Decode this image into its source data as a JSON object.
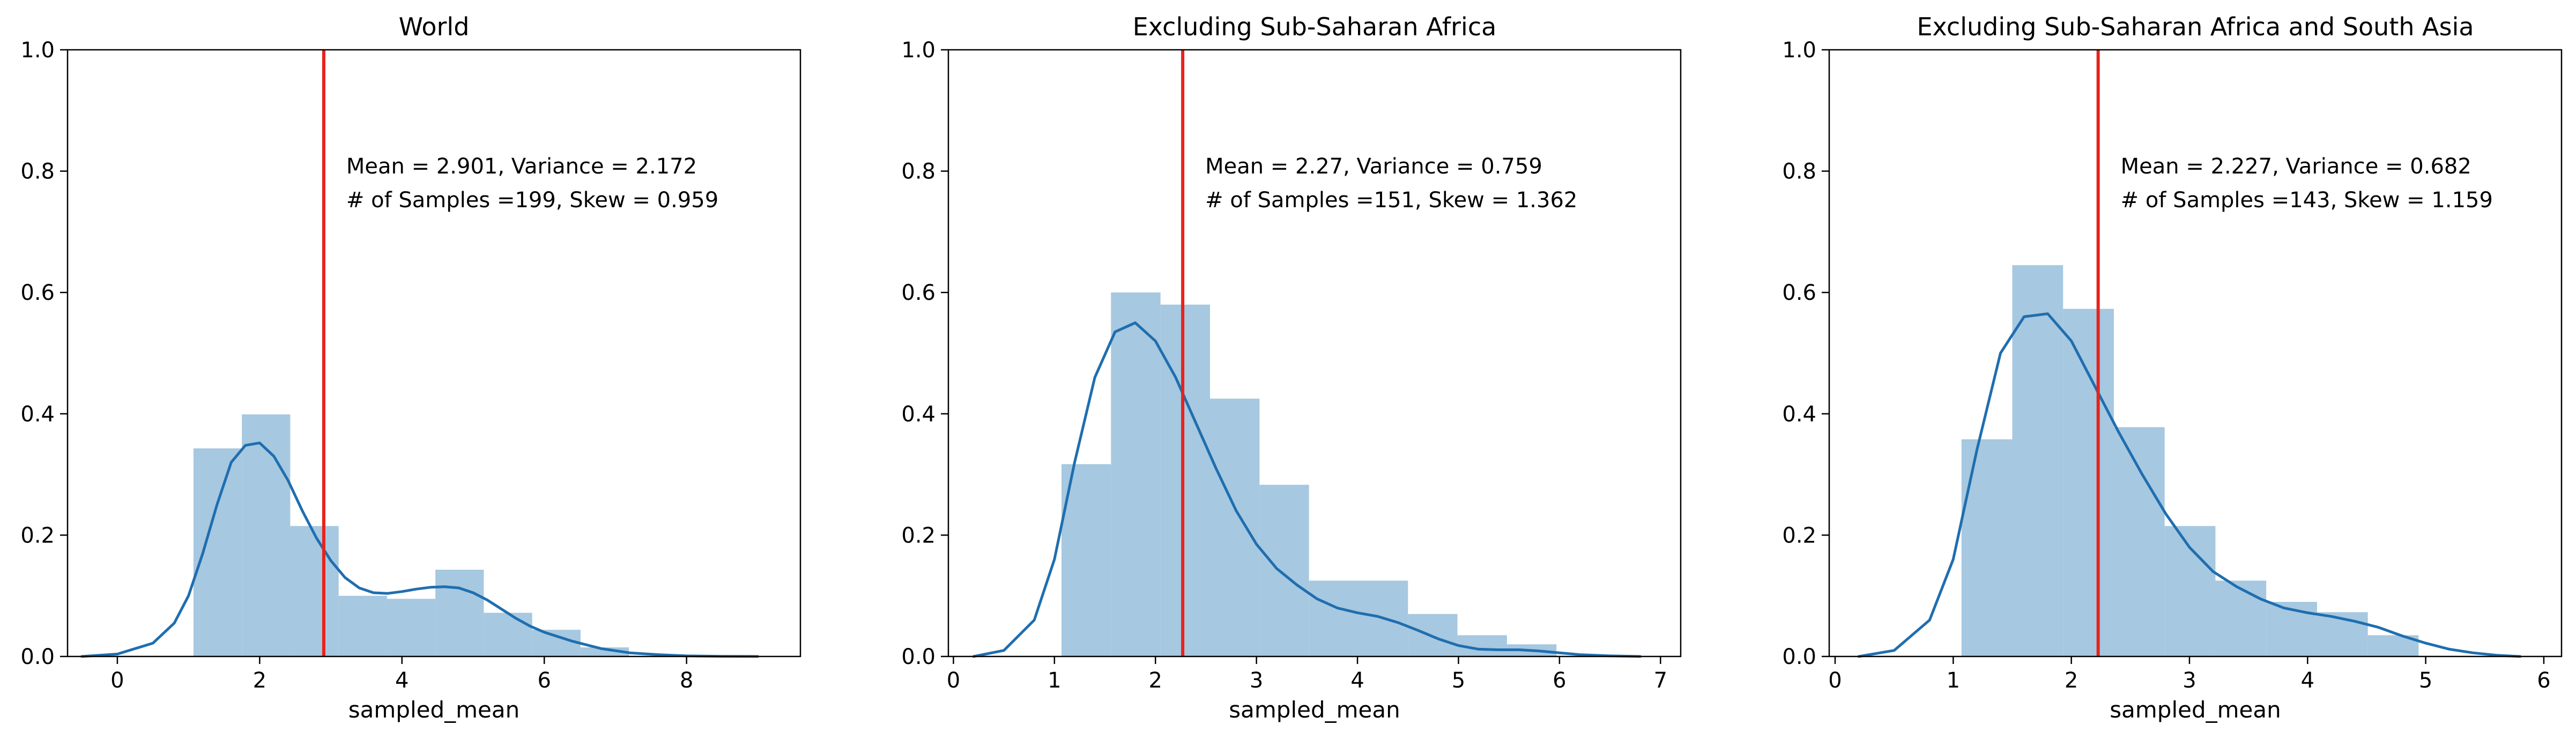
{
  "chart_data": [
    {
      "type": "histogram-kde",
      "title": "World",
      "xlabel": "sampled_mean",
      "ylabel": "",
      "xlim": [
        -0.7,
        9.6
      ],
      "ylim": [
        0,
        1.0
      ],
      "xticks": [
        0,
        2,
        4,
        6,
        8
      ],
      "yticks": [
        "0.0",
        "0.2",
        "0.4",
        "0.6",
        "0.8",
        "1.0"
      ],
      "mean_line": 2.901,
      "annotation": [
        "Mean = 2.901, Variance = 2.172",
        "# of Samples =199, Skew = 0.959"
      ],
      "bins": [
        {
          "x0": 1.07,
          "x1": 1.75,
          "height": 0.343
        },
        {
          "x0": 1.75,
          "x1": 2.43,
          "height": 0.399
        },
        {
          "x0": 2.43,
          "x1": 3.11,
          "height": 0.215
        },
        {
          "x0": 3.11,
          "x1": 3.79,
          "height": 0.1
        },
        {
          "x0": 3.79,
          "x1": 4.47,
          "height": 0.095
        },
        {
          "x0": 4.47,
          "x1": 5.15,
          "height": 0.143
        },
        {
          "x0": 5.15,
          "x1": 5.83,
          "height": 0.072
        },
        {
          "x0": 5.83,
          "x1": 6.51,
          "height": 0.044
        },
        {
          "x0": 6.51,
          "x1": 7.19,
          "height": 0.015
        }
      ],
      "kde": {
        "x": [
          -0.5,
          0.0,
          0.5,
          0.8,
          1.0,
          1.2,
          1.4,
          1.6,
          1.8,
          2.0,
          2.2,
          2.4,
          2.6,
          2.8,
          3.0,
          3.2,
          3.4,
          3.6,
          3.8,
          4.0,
          4.2,
          4.4,
          4.6,
          4.8,
          5.0,
          5.2,
          5.4,
          5.6,
          5.8,
          6.0,
          6.4,
          6.8,
          7.2,
          7.6,
          8.0,
          8.5,
          9.0
        ],
        "y": [
          0.0,
          0.004,
          0.022,
          0.055,
          0.1,
          0.17,
          0.25,
          0.32,
          0.348,
          0.352,
          0.33,
          0.29,
          0.24,
          0.195,
          0.158,
          0.13,
          0.113,
          0.105,
          0.104,
          0.107,
          0.111,
          0.114,
          0.115,
          0.113,
          0.105,
          0.093,
          0.078,
          0.063,
          0.05,
          0.04,
          0.025,
          0.013,
          0.006,
          0.003,
          0.001,
          0.0003,
          0.0
        ]
      }
    },
    {
      "type": "histogram-kde",
      "title": "Excluding Sub-Saharan Africa",
      "xlabel": "sampled_mean",
      "ylabel": "",
      "xlim": [
        -0.05,
        7.2
      ],
      "ylim": [
        0,
        1.0
      ],
      "xticks": [
        0,
        1,
        2,
        3,
        4,
        5,
        6,
        7
      ],
      "yticks": [
        "0.0",
        "0.2",
        "0.4",
        "0.6",
        "0.8",
        "1.0"
      ],
      "mean_line": 2.27,
      "annotation": [
        "Mean = 2.27, Variance = 0.759",
        "# of Samples =151, Skew = 1.362"
      ],
      "bins": [
        {
          "x0": 1.07,
          "x1": 1.56,
          "height": 0.317
        },
        {
          "x0": 1.56,
          "x1": 2.05,
          "height": 0.6
        },
        {
          "x0": 2.05,
          "x1": 2.54,
          "height": 0.58
        },
        {
          "x0": 2.54,
          "x1": 3.03,
          "height": 0.425
        },
        {
          "x0": 3.03,
          "x1": 3.52,
          "height": 0.283
        },
        {
          "x0": 3.52,
          "x1": 4.01,
          "height": 0.125
        },
        {
          "x0": 4.01,
          "x1": 4.5,
          "height": 0.125
        },
        {
          "x0": 4.5,
          "x1": 4.99,
          "height": 0.07
        },
        {
          "x0": 4.99,
          "x1": 5.48,
          "height": 0.035
        },
        {
          "x0": 5.48,
          "x1": 5.97,
          "height": 0.02
        }
      ],
      "kde": {
        "x": [
          0.2,
          0.5,
          0.8,
          1.0,
          1.2,
          1.4,
          1.6,
          1.8,
          2.0,
          2.2,
          2.4,
          2.6,
          2.8,
          3.0,
          3.2,
          3.4,
          3.6,
          3.8,
          4.0,
          4.2,
          4.4,
          4.6,
          4.8,
          5.0,
          5.2,
          5.4,
          5.6,
          5.8,
          6.0,
          6.2,
          6.5,
          6.8
        ],
        "y": [
          0.0,
          0.01,
          0.06,
          0.16,
          0.32,
          0.46,
          0.535,
          0.55,
          0.52,
          0.46,
          0.385,
          0.31,
          0.24,
          0.185,
          0.145,
          0.118,
          0.095,
          0.08,
          0.072,
          0.066,
          0.056,
          0.043,
          0.029,
          0.018,
          0.012,
          0.011,
          0.011,
          0.009,
          0.006,
          0.003,
          0.001,
          0.0
        ]
      }
    },
    {
      "type": "histogram-kde",
      "title": "Excluding Sub-Saharan Africa and South Asia",
      "xlabel": "sampled_mean",
      "ylabel": "",
      "xlim": [
        -0.05,
        6.15
      ],
      "ylim": [
        0,
        1.0
      ],
      "xticks": [
        0,
        1,
        2,
        3,
        4,
        5,
        6
      ],
      "yticks": [
        "0.0",
        "0.2",
        "0.4",
        "0.6",
        "0.8",
        "1.0"
      ],
      "mean_line": 2.227,
      "annotation": [
        "Mean = 2.227, Variance = 0.682",
        "# of Samples =143, Skew = 1.159"
      ],
      "bins": [
        {
          "x0": 1.07,
          "x1": 1.5,
          "height": 0.358
        },
        {
          "x0": 1.5,
          "x1": 1.93,
          "height": 0.645
        },
        {
          "x0": 1.93,
          "x1": 2.36,
          "height": 0.573
        },
        {
          "x0": 2.36,
          "x1": 2.79,
          "height": 0.378
        },
        {
          "x0": 2.79,
          "x1": 3.22,
          "height": 0.215
        },
        {
          "x0": 3.22,
          "x1": 3.65,
          "height": 0.125
        },
        {
          "x0": 3.65,
          "x1": 4.08,
          "height": 0.09
        },
        {
          "x0": 4.08,
          "x1": 4.51,
          "height": 0.073
        },
        {
          "x0": 4.51,
          "x1": 4.94,
          "height": 0.035
        }
      ],
      "kde": {
        "x": [
          0.2,
          0.5,
          0.8,
          1.0,
          1.2,
          1.4,
          1.6,
          1.8,
          2.0,
          2.2,
          2.4,
          2.6,
          2.8,
          3.0,
          3.2,
          3.4,
          3.6,
          3.8,
          4.0,
          4.2,
          4.4,
          4.6,
          4.8,
          5.0,
          5.2,
          5.4,
          5.6,
          5.8
        ],
        "y": [
          0.0,
          0.01,
          0.06,
          0.16,
          0.34,
          0.5,
          0.56,
          0.565,
          0.52,
          0.445,
          0.37,
          0.3,
          0.235,
          0.18,
          0.14,
          0.115,
          0.095,
          0.08,
          0.072,
          0.066,
          0.058,
          0.048,
          0.034,
          0.022,
          0.012,
          0.006,
          0.002,
          0.0
        ]
      }
    }
  ],
  "colors": {
    "bar": "#a6c8e0",
    "kde": "#1f6eaf",
    "mean_line": "#e8221b",
    "axis": "#000000"
  }
}
